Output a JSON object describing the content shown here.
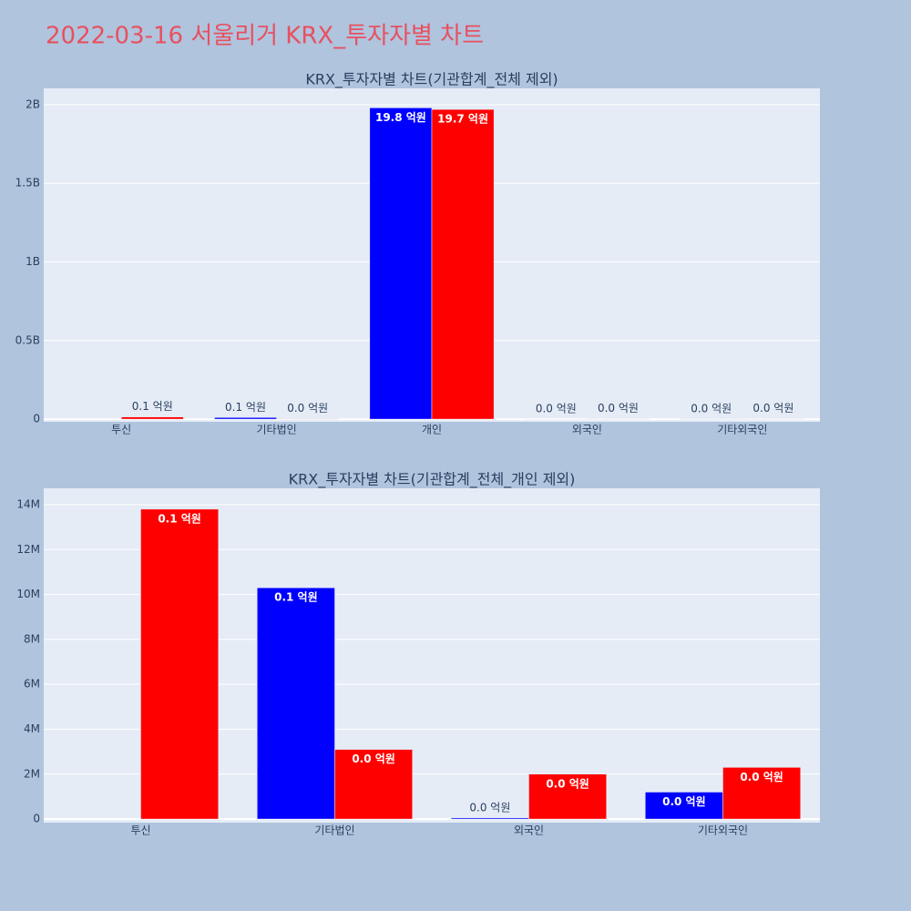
{
  "title": "2022-03-16 서울리거 KRX_투자자별 차트",
  "chart_data": [
    {
      "type": "bar",
      "title": "KRX_투자자별 차트(기관합계_전체 제외)",
      "categories": [
        "투신",
        "기타법인",
        "개인",
        "외국인",
        "기타외국인"
      ],
      "series": [
        {
          "color": "blue",
          "values": [
            null,
            10300000,
            1980000000,
            50000,
            1200000
          ],
          "value_labels": [
            null,
            "0.1 억원",
            "19.8 억원",
            "0.0 억원",
            "0.0 억원"
          ]
        },
        {
          "color": "red",
          "values": [
            13800000,
            3100000,
            1970000000,
            2000000,
            2300000
          ],
          "value_labels": [
            "0.1 억원",
            "0.0 억원",
            "19.7 억원",
            "0.0 억원",
            "0.0 억원"
          ]
        }
      ],
      "ylim": [
        -17000000,
        2104000000
      ],
      "yticks": [
        0,
        {
          "value": 500000000,
          "label": "0.5B"
        },
        {
          "value": 1000000000,
          "label": "1B"
        },
        {
          "value": 1500000000,
          "label": "1.5B"
        },
        {
          "value": 2000000000,
          "label": "2B"
        }
      ],
      "grid": true
    },
    {
      "type": "bar",
      "title": "KRX_투자자별 차트(기관합계_전체_개인 제외)",
      "categories": [
        "투신",
        "기타법인",
        "외국인",
        "기타외국인"
      ],
      "series": [
        {
          "color": "blue",
          "values": [
            null,
            10300000,
            50000,
            1200000
          ],
          "value_labels": [
            null,
            "0.1 억원",
            "0.0 억원",
            "0.0 억원"
          ]
        },
        {
          "color": "red",
          "values": [
            13800000,
            3100000,
            2000000,
            2300000
          ],
          "value_labels": [
            "0.1 억원",
            "0.0 억원",
            "0.0 억원",
            "0.0 억원"
          ]
        }
      ],
      "ylim": [
        -160000,
        14730000
      ],
      "yticks": [
        0,
        {
          "value": 2000000,
          "label": "2M"
        },
        {
          "value": 4000000,
          "label": "4M"
        },
        {
          "value": 6000000,
          "label": "6M"
        },
        {
          "value": 8000000,
          "label": "8M"
        },
        {
          "value": 10000000,
          "label": "10M"
        },
        {
          "value": 12000000,
          "label": "12M"
        },
        {
          "value": 14000000,
          "label": "14M"
        }
      ],
      "grid": true
    }
  ]
}
